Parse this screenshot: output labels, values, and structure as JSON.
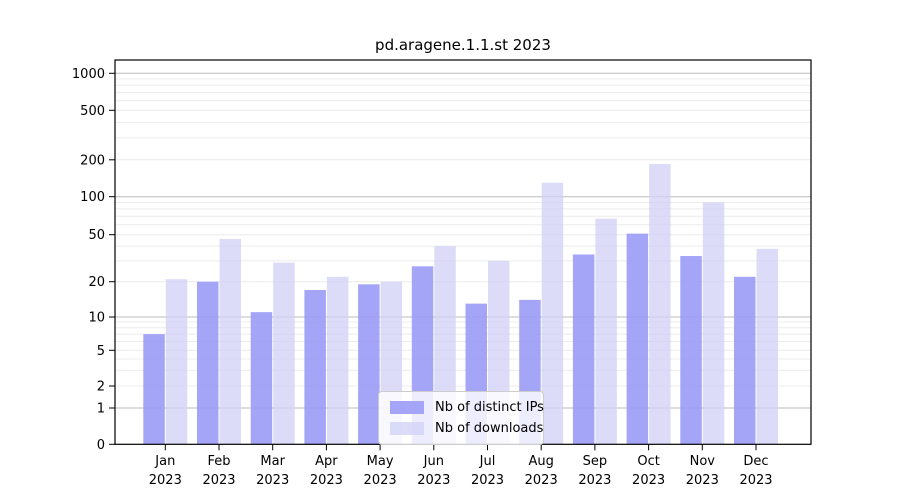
{
  "figure": {
    "background": "#ffffff"
  },
  "chart_data": {
    "type": "bar",
    "title": "pd.aragene.1.1.st 2023",
    "categories": [
      "Jan",
      "Feb",
      "Mar",
      "Apr",
      "May",
      "Jun",
      "Jul",
      "Aug",
      "Sep",
      "Oct",
      "Nov",
      "Dec"
    ],
    "category_year": "2023",
    "series": [
      {
        "name": "Nb of distinct IPs",
        "color": "#9b9bf7",
        "opacity": 0.9,
        "values": [
          7,
          20,
          11,
          17,
          19,
          27,
          13,
          14,
          34,
          51,
          33,
          22
        ]
      },
      {
        "name": "Nb of downloads",
        "color": "#d0d0f7",
        "opacity": 0.75,
        "values": [
          21,
          46,
          29,
          22,
          20,
          40,
          30,
          130,
          67,
          185,
          90,
          38
        ]
      }
    ],
    "yscale": "symlog",
    "yticks": [
      0,
      1,
      2,
      5,
      10,
      20,
      50,
      100,
      200,
      500,
      1000
    ],
    "ylim": [
      0,
      1400
    ],
    "xlabel": "",
    "ylabel": "",
    "grid": true,
    "legend_position": "lower center",
    "colors": {
      "major_grid": "#bbbbbb",
      "minor_grid": "#ececec",
      "axis": "#000000",
      "text": "#000000"
    }
  }
}
